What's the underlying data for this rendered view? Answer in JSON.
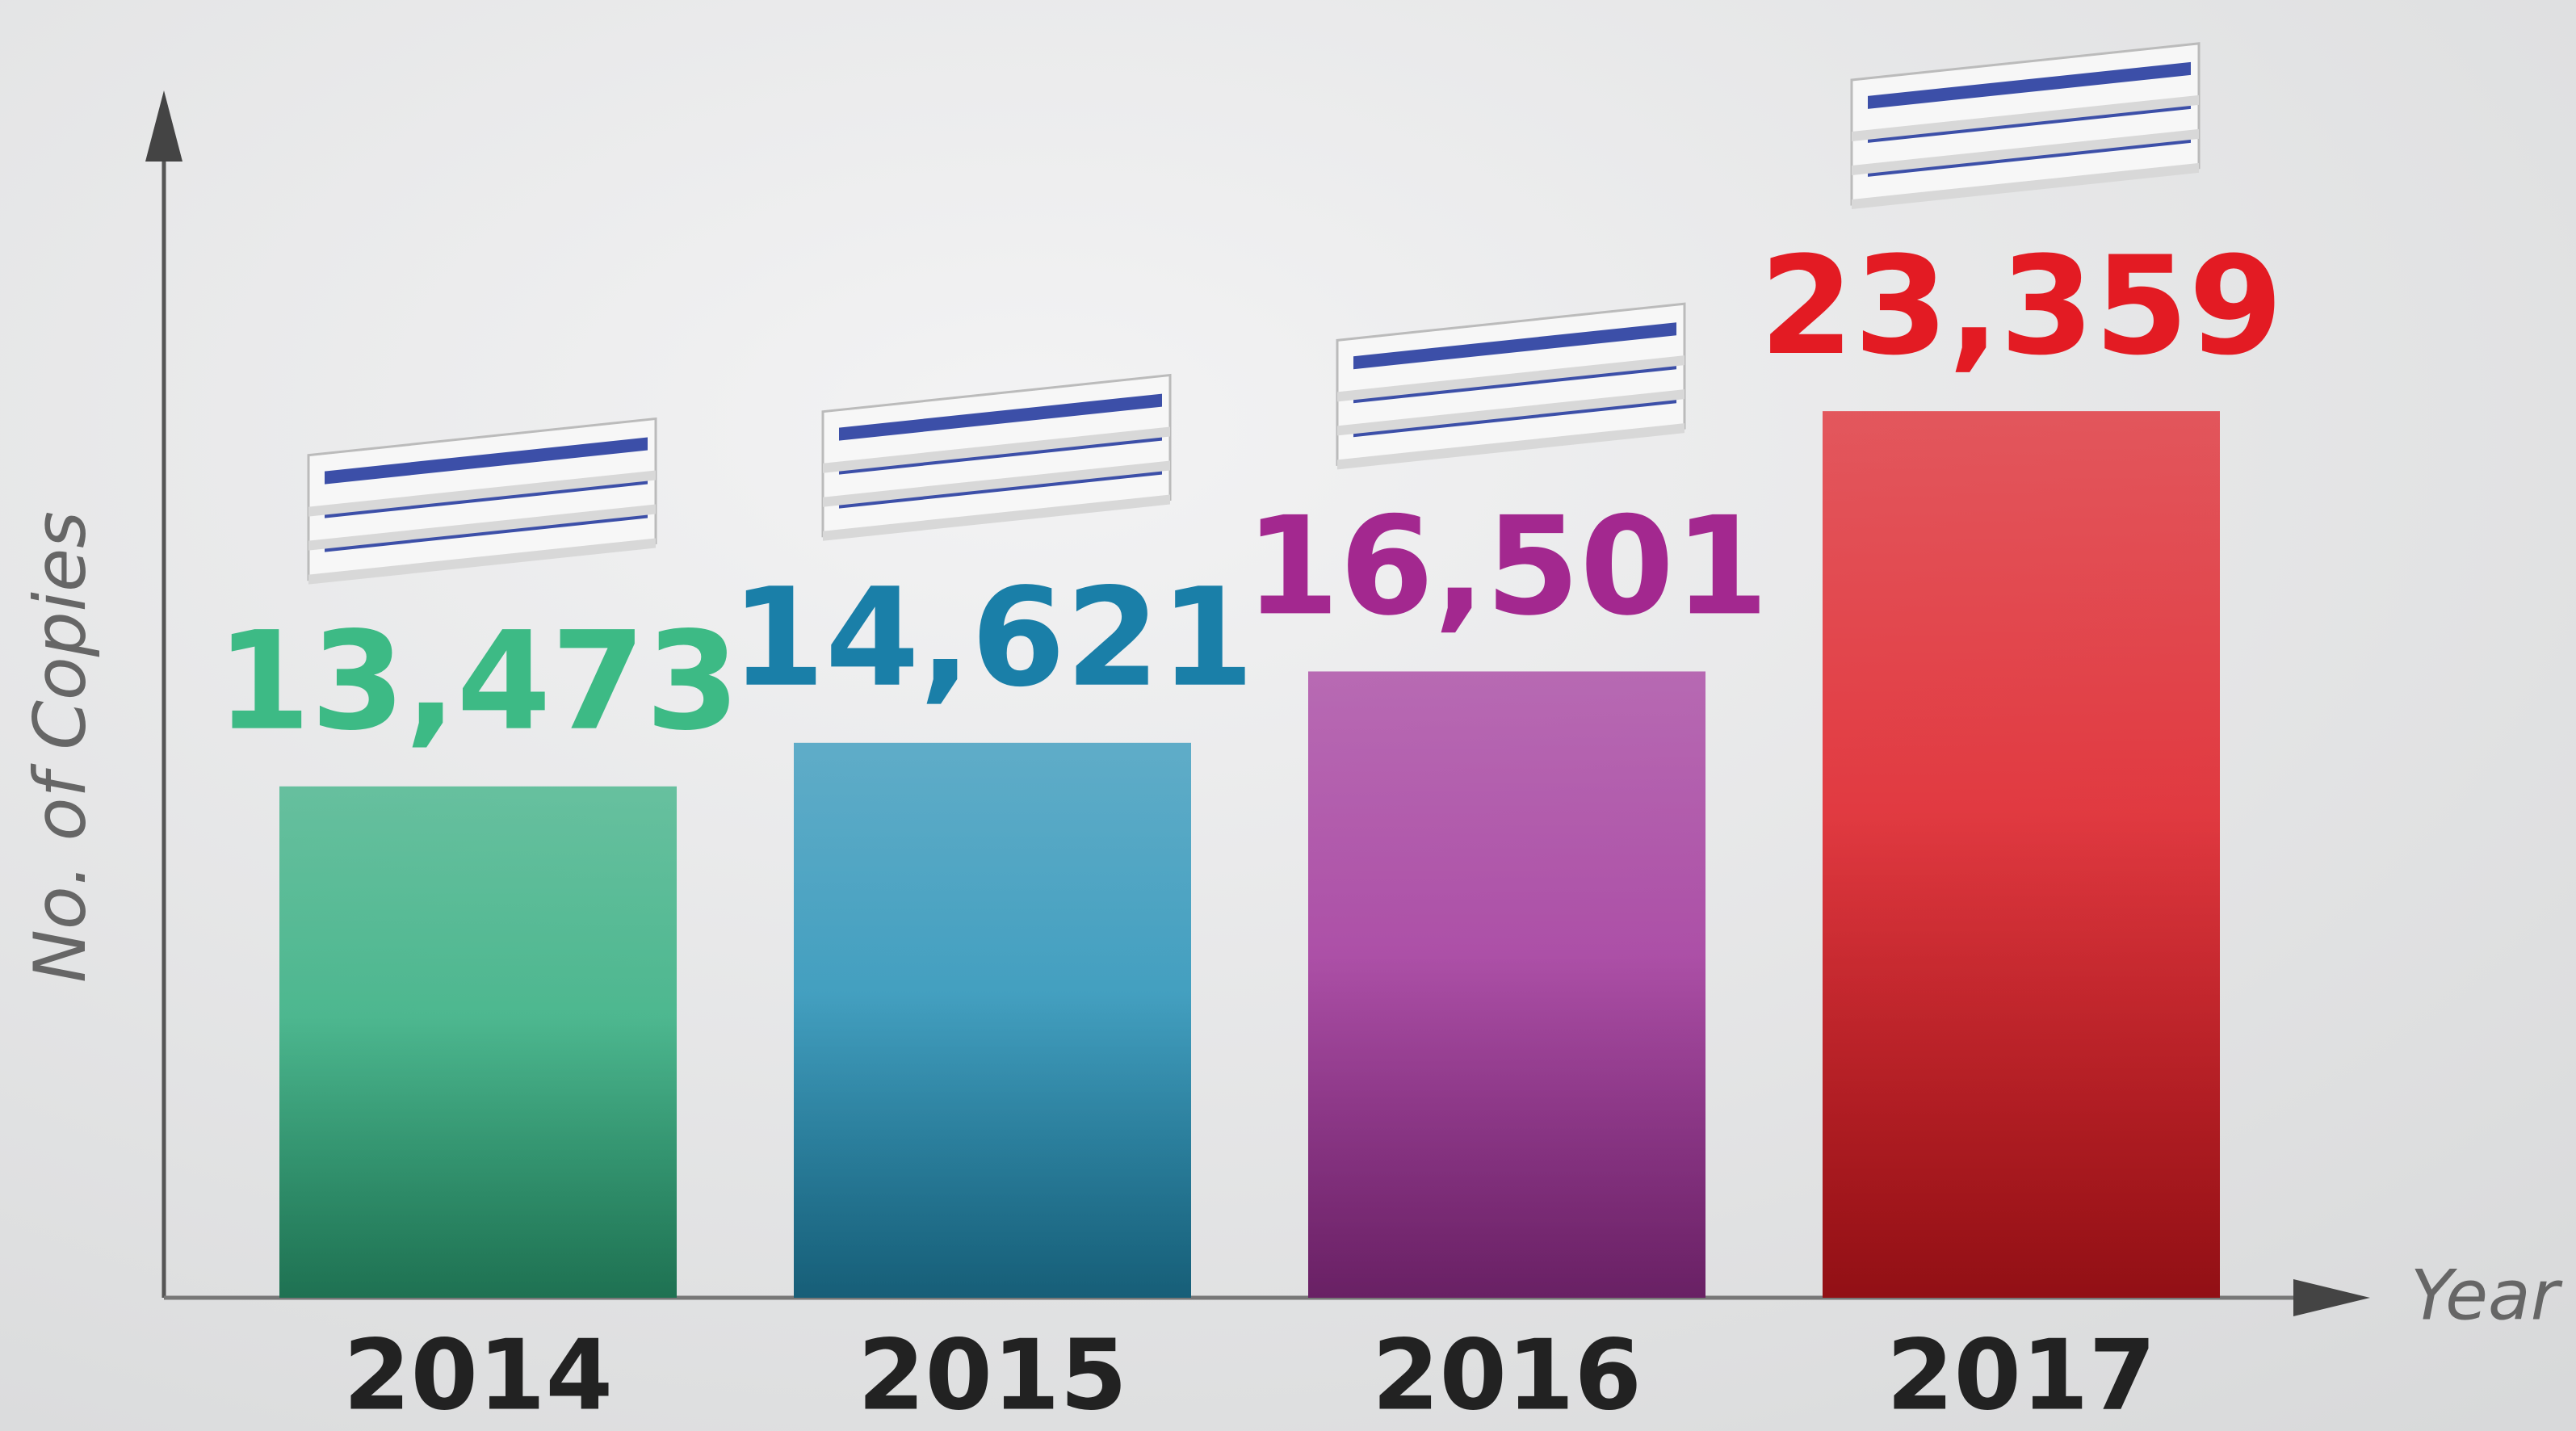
{
  "chart_data": {
    "type": "bar",
    "categories": [
      "2014",
      "2015",
      "2016",
      "2017"
    ],
    "values": [
      13473,
      14621,
      16501,
      23359
    ],
    "value_labels": [
      "13,473",
      "14,621",
      "16,501",
      "23,359"
    ],
    "colors": [
      "#2fae7e",
      "#2391b8",
      "#a1329a",
      "#e01820"
    ],
    "label_colors": [
      "#3dba85",
      "#1a7fa8",
      "#a3288f",
      "#e31b23"
    ],
    "y_label": "No. of Copies",
    "x_label": "Year",
    "ylim": [
      0,
      31000
    ]
  }
}
